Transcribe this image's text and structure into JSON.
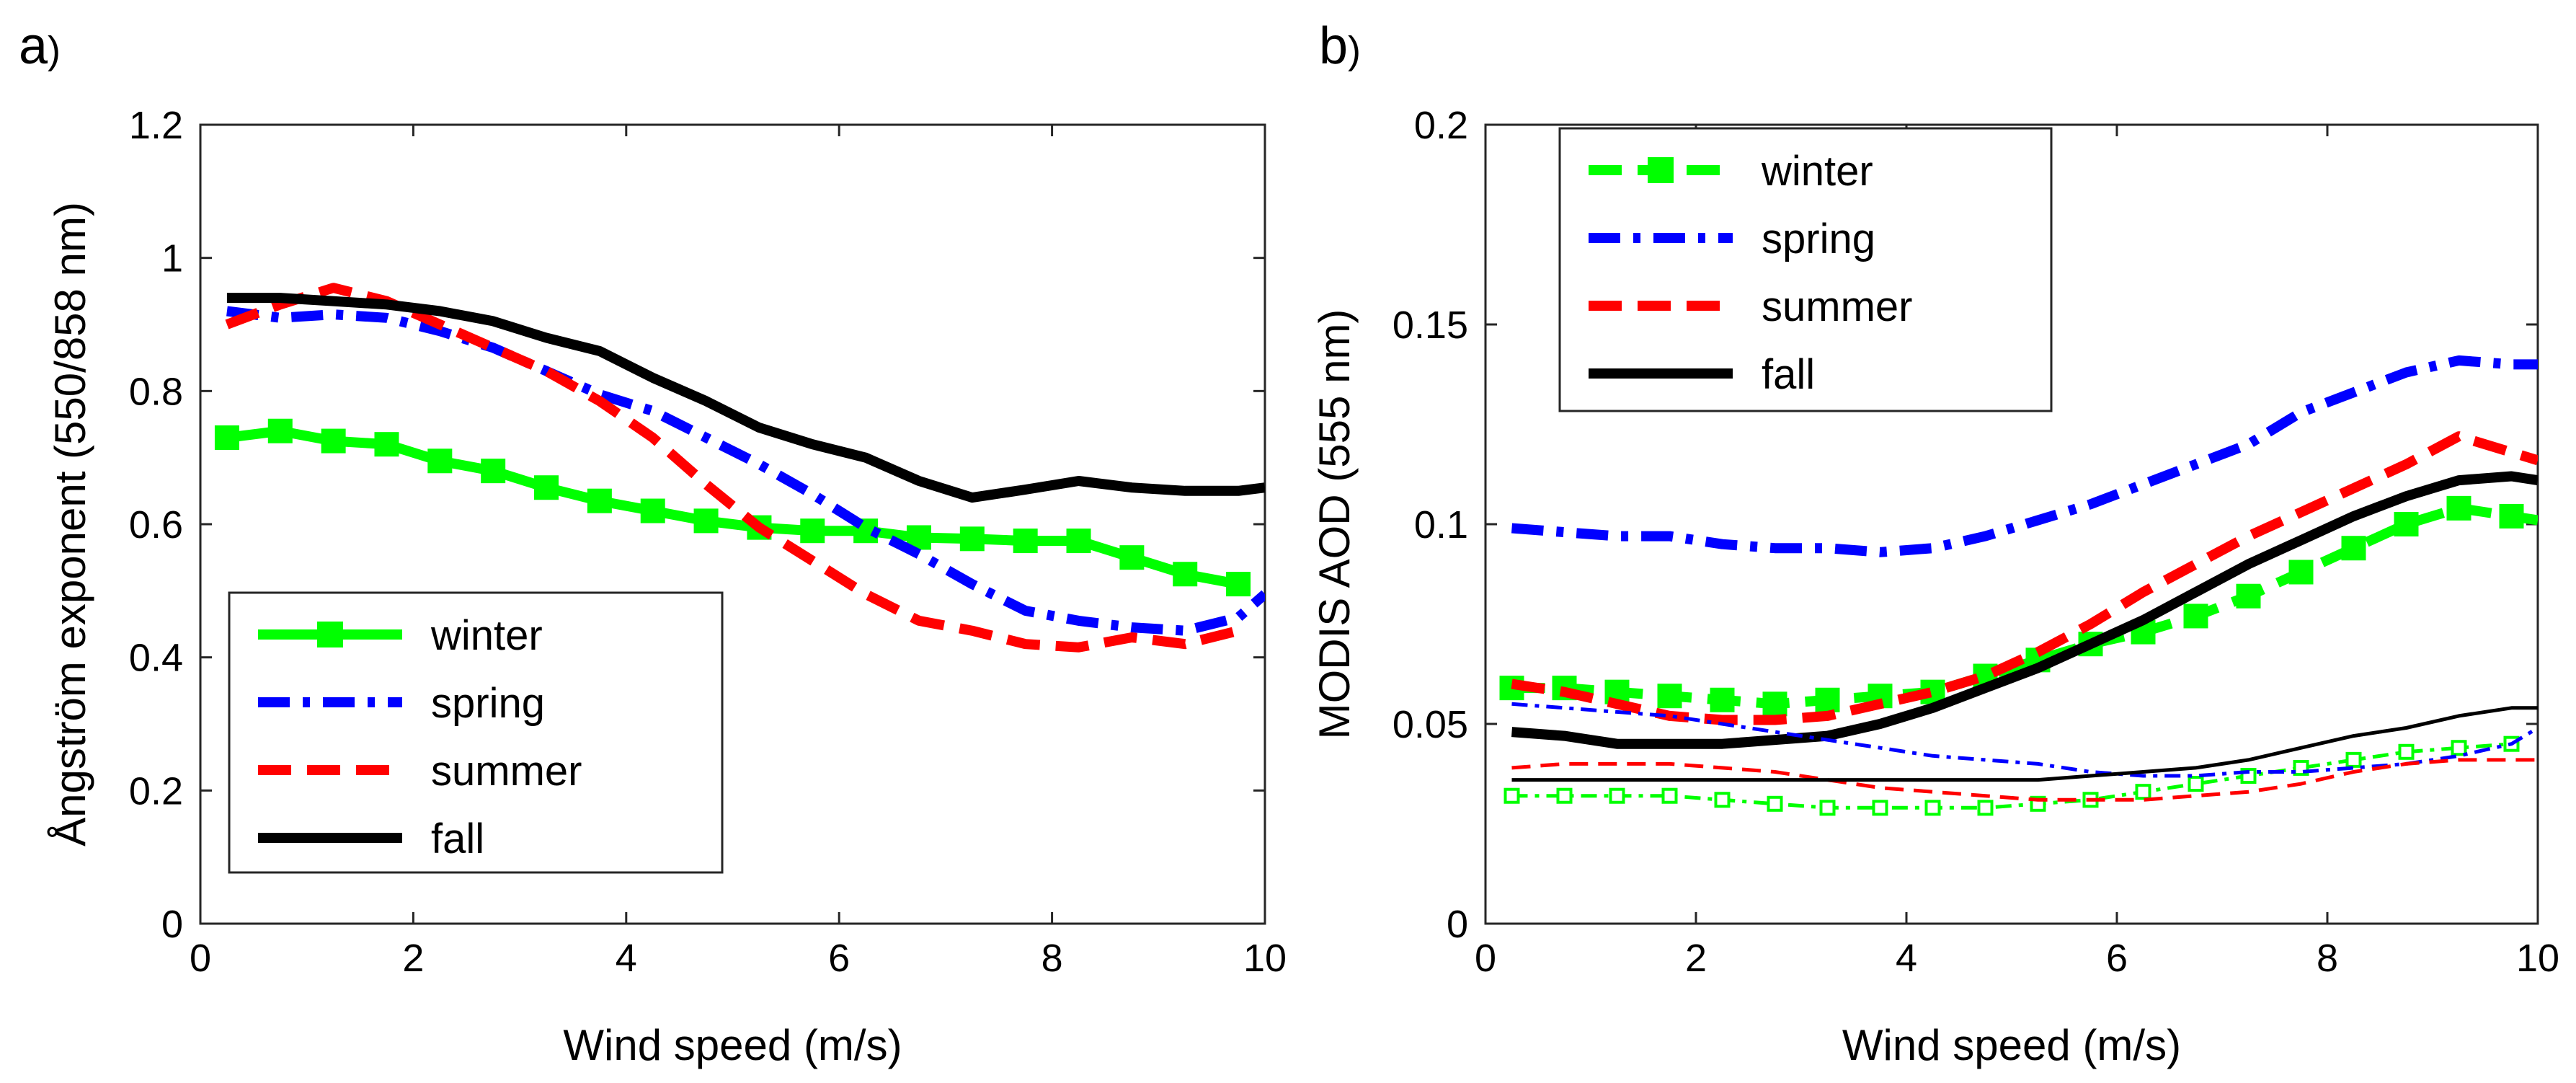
{
  "chart_data": [
    {
      "type": "line",
      "panel_label": "a",
      "panel_paren": ")",
      "xlabel": "Wind speed (m/s)",
      "ylabel": "Ångström exponent (550/858 nm)",
      "xlim": [
        0,
        10
      ],
      "ylim": [
        0,
        1.2
      ],
      "xticks": [
        0,
        2,
        4,
        6,
        8,
        10
      ],
      "xtick_labels": [
        "0",
        "2",
        "4",
        "6",
        "8",
        "10"
      ],
      "yticks": [
        0,
        0.2,
        0.4,
        0.6,
        0.8,
        1.0,
        1.2
      ],
      "ytick_labels": [
        "0",
        "0.2",
        "0.4",
        "0.6",
        "0.8",
        "1",
        "1.2"
      ],
      "legend_position": "bottom-left",
      "legend": [
        "winter",
        "spring",
        "summer",
        "fall"
      ],
      "series": [
        {
          "name": "winter",
          "color": "#00ff00",
          "style": "solid",
          "marker": "square-filled",
          "width": "thick",
          "x": [
            0.25,
            0.75,
            1.25,
            1.75,
            2.25,
            2.75,
            3.25,
            3.75,
            4.25,
            4.75,
            5.25,
            5.75,
            6.25,
            6.75,
            7.25,
            7.75,
            8.25,
            8.75,
            9.25,
            9.75
          ],
          "y": [
            0.73,
            0.74,
            0.725,
            0.72,
            0.695,
            0.68,
            0.655,
            0.635,
            0.62,
            0.605,
            0.595,
            0.59,
            0.59,
            0.58,
            0.578,
            0.575,
            0.575,
            0.55,
            0.525,
            0.51
          ]
        },
        {
          "name": "spring",
          "color": "#0000ff",
          "style": "dashdot",
          "width": "thick",
          "x": [
            0.25,
            0.75,
            1.25,
            1.75,
            2.25,
            2.75,
            3.25,
            3.75,
            4.25,
            4.75,
            5.25,
            5.75,
            6.25,
            6.75,
            7.25,
            7.75,
            8.25,
            8.75,
            9.25,
            9.75,
            10.0
          ],
          "y": [
            0.92,
            0.91,
            0.915,
            0.91,
            0.89,
            0.865,
            0.83,
            0.795,
            0.77,
            0.73,
            0.69,
            0.645,
            0.595,
            0.555,
            0.51,
            0.47,
            0.455,
            0.445,
            0.44,
            0.46,
            0.495
          ]
        },
        {
          "name": "summer",
          "color": "#ff0000",
          "style": "dashed",
          "width": "thick",
          "x": [
            0.25,
            0.75,
            1.25,
            1.75,
            2.25,
            2.75,
            3.25,
            3.75,
            4.25,
            4.75,
            5.25,
            5.75,
            6.25,
            6.75,
            7.25,
            7.75,
            8.25,
            8.75,
            9.25,
            9.75
          ],
          "y": [
            0.9,
            0.93,
            0.955,
            0.935,
            0.9,
            0.865,
            0.83,
            0.785,
            0.73,
            0.66,
            0.595,
            0.545,
            0.495,
            0.455,
            0.44,
            0.42,
            0.415,
            0.43,
            0.42,
            0.44
          ]
        },
        {
          "name": "fall",
          "color": "#000000",
          "style": "solid",
          "width": "thick",
          "x": [
            0.25,
            0.75,
            1.25,
            1.75,
            2.25,
            2.75,
            3.25,
            3.75,
            4.25,
            4.75,
            5.25,
            5.75,
            6.25,
            6.75,
            7.25,
            7.75,
            8.25,
            8.75,
            9.25,
            9.75,
            10.0
          ],
          "y": [
            0.94,
            0.94,
            0.935,
            0.93,
            0.92,
            0.905,
            0.88,
            0.86,
            0.82,
            0.785,
            0.745,
            0.72,
            0.7,
            0.665,
            0.64,
            0.652,
            0.665,
            0.655,
            0.65,
            0.65,
            0.655
          ]
        }
      ]
    },
    {
      "type": "line",
      "panel_label": "b",
      "panel_paren": ")",
      "xlabel": "Wind speed (m/s)",
      "ylabel": "MODIS AOD (555 nm)",
      "xlim": [
        0,
        10
      ],
      "ylim": [
        0,
        0.2
      ],
      "xticks": [
        0,
        2,
        4,
        6,
        8,
        10
      ],
      "xtick_labels": [
        "0",
        "2",
        "4",
        "6",
        "8",
        "10"
      ],
      "yticks": [
        0,
        0.05,
        0.1,
        0.15,
        0.2
      ],
      "ytick_labels": [
        "0",
        "0.05",
        "0.1",
        "0.15",
        "0.2"
      ],
      "legend_position": "top-left",
      "legend": [
        "winter",
        "spring",
        "summer",
        "fall"
      ],
      "series": [
        {
          "name": "winter",
          "color": "#00ff00",
          "style": "dashed",
          "marker": "square-filled",
          "width": "thick",
          "x": [
            0.25,
            0.75,
            1.25,
            1.75,
            2.25,
            2.75,
            3.25,
            3.75,
            4.25,
            4.75,
            5.25,
            5.75,
            6.25,
            6.75,
            7.25,
            7.75,
            8.25,
            8.75,
            9.25,
            9.75,
            10.0
          ],
          "y": [
            0.059,
            0.059,
            0.058,
            0.057,
            0.056,
            0.055,
            0.056,
            0.057,
            0.058,
            0.062,
            0.066,
            0.07,
            0.073,
            0.077,
            0.082,
            0.088,
            0.094,
            0.1,
            0.104,
            0.102,
            0.101
          ]
        },
        {
          "name": "spring",
          "color": "#0000ff",
          "style": "dashdot",
          "width": "thick",
          "x": [
            0.25,
            0.75,
            1.25,
            1.75,
            2.25,
            2.75,
            3.25,
            3.75,
            4.25,
            4.75,
            5.25,
            5.75,
            6.25,
            6.75,
            7.25,
            7.75,
            8.25,
            8.75,
            9.25,
            9.75,
            10.0
          ],
          "y": [
            0.099,
            0.098,
            0.097,
            0.097,
            0.095,
            0.094,
            0.094,
            0.093,
            0.094,
            0.097,
            0.101,
            0.105,
            0.11,
            0.115,
            0.12,
            0.128,
            0.133,
            0.138,
            0.141,
            0.14,
            0.14
          ]
        },
        {
          "name": "summer",
          "color": "#ff0000",
          "style": "dashed",
          "width": "thick",
          "x": [
            0.25,
            0.75,
            1.25,
            1.75,
            2.25,
            2.75,
            3.25,
            3.75,
            4.25,
            4.75,
            5.25,
            5.75,
            6.25,
            6.75,
            7.25,
            7.75,
            8.25,
            8.75,
            9.25,
            9.75,
            10.0
          ],
          "y": [
            0.06,
            0.058,
            0.055,
            0.052,
            0.051,
            0.051,
            0.052,
            0.055,
            0.058,
            0.062,
            0.068,
            0.075,
            0.083,
            0.09,
            0.097,
            0.103,
            0.109,
            0.115,
            0.122,
            0.118,
            0.116
          ]
        },
        {
          "name": "fall",
          "color": "#000000",
          "style": "solid",
          "width": "thick",
          "x": [
            0.25,
            0.75,
            1.25,
            1.75,
            2.25,
            2.75,
            3.25,
            3.75,
            4.25,
            4.75,
            5.25,
            5.75,
            6.25,
            6.75,
            7.25,
            7.75,
            8.25,
            8.75,
            9.25,
            9.75,
            10.0
          ],
          "y": [
            0.048,
            0.047,
            0.045,
            0.045,
            0.045,
            0.046,
            0.047,
            0.05,
            0.054,
            0.059,
            0.064,
            0.07,
            0.076,
            0.083,
            0.09,
            0.096,
            0.102,
            0.107,
            0.111,
            0.112,
            0.111
          ]
        },
        {
          "name": "winter-thin",
          "color": "#00ff00",
          "style": "dashdot",
          "marker": "square-open",
          "width": "thin",
          "x": [
            0.25,
            0.75,
            1.25,
            1.75,
            2.25,
            2.75,
            3.25,
            3.75,
            4.25,
            4.75,
            5.25,
            5.75,
            6.25,
            6.75,
            7.25,
            7.75,
            8.25,
            8.75,
            9.25,
            9.75
          ],
          "y": [
            0.032,
            0.032,
            0.032,
            0.032,
            0.031,
            0.03,
            0.029,
            0.029,
            0.029,
            0.029,
            0.03,
            0.031,
            0.033,
            0.035,
            0.037,
            0.039,
            0.041,
            0.043,
            0.044,
            0.045
          ]
        },
        {
          "name": "spring-thin",
          "color": "#0000ff",
          "style": "dashdot",
          "width": "thin",
          "x": [
            0.25,
            0.75,
            1.25,
            1.75,
            2.25,
            2.75,
            3.25,
            3.75,
            4.25,
            4.75,
            5.25,
            5.75,
            6.25,
            6.75,
            7.25,
            7.75,
            8.25,
            8.75,
            9.25,
            9.75,
            10.0
          ],
          "y": [
            0.055,
            0.054,
            0.053,
            0.052,
            0.05,
            0.048,
            0.046,
            0.044,
            0.042,
            0.041,
            0.04,
            0.038,
            0.037,
            0.037,
            0.038,
            0.038,
            0.039,
            0.04,
            0.042,
            0.045,
            0.049
          ]
        },
        {
          "name": "summer-thin",
          "color": "#ff0000",
          "style": "dashed",
          "width": "thin",
          "x": [
            0.25,
            0.75,
            1.25,
            1.75,
            2.25,
            2.75,
            3.25,
            3.75,
            4.25,
            4.75,
            5.25,
            5.75,
            6.25,
            6.75,
            7.25,
            7.75,
            8.25,
            8.75,
            9.25,
            9.75,
            10.0
          ],
          "y": [
            0.039,
            0.04,
            0.04,
            0.04,
            0.039,
            0.038,
            0.036,
            0.034,
            0.033,
            0.032,
            0.031,
            0.031,
            0.031,
            0.032,
            0.033,
            0.035,
            0.038,
            0.04,
            0.041,
            0.041,
            0.041
          ]
        },
        {
          "name": "fall-thin",
          "color": "#000000",
          "style": "solid",
          "width": "thin",
          "x": [
            0.25,
            0.75,
            1.25,
            1.75,
            2.25,
            2.75,
            3.25,
            3.75,
            4.25,
            4.75,
            5.25,
            5.75,
            6.25,
            6.75,
            7.25,
            7.75,
            8.25,
            8.75,
            9.25,
            9.75,
            10.0
          ],
          "y": [
            0.036,
            0.036,
            0.036,
            0.036,
            0.036,
            0.036,
            0.036,
            0.036,
            0.036,
            0.036,
            0.036,
            0.037,
            0.038,
            0.039,
            0.041,
            0.044,
            0.047,
            0.049,
            0.052,
            0.054,
            0.054
          ]
        }
      ]
    }
  ]
}
